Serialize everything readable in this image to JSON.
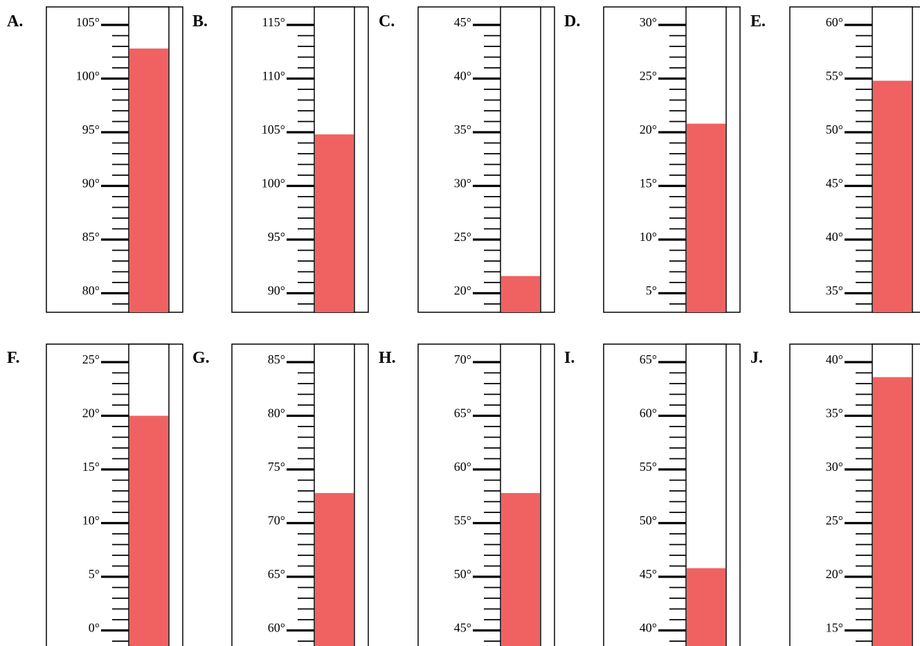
{
  "colors": {
    "fill": "#F06262",
    "ink": "#000000",
    "paper": "#FFFFFF"
  },
  "thermometers": [
    {
      "letter": "A.",
      "labels": [
        "105°",
        "100°",
        "95°",
        "90°",
        "85°",
        "80°"
      ],
      "top_value": 105,
      "reading": 102.8
    },
    {
      "letter": "B.",
      "labels": [
        "115°",
        "110°",
        "105°",
        "100°",
        "95°",
        "90°"
      ],
      "top_value": 115,
      "reading": 104.8
    },
    {
      "letter": "C.",
      "labels": [
        "45°",
        "40°",
        "35°",
        "30°",
        "25°",
        "20°"
      ],
      "top_value": 45,
      "reading": 21.6
    },
    {
      "letter": "D.",
      "labels": [
        "30°",
        "25°",
        "20°",
        "15°",
        "10°",
        "5°"
      ],
      "top_value": 30,
      "reading": 20.8
    },
    {
      "letter": "E.",
      "labels": [
        "60°",
        "55°",
        "50°",
        "45°",
        "40°",
        "35°"
      ],
      "top_value": 60,
      "reading": 54.8
    },
    {
      "letter": "F.",
      "labels": [
        "25°",
        "20°",
        "15°",
        "10°",
        "5°",
        "0°"
      ],
      "top_value": 25,
      "reading": 20
    },
    {
      "letter": "G.",
      "labels": [
        "85°",
        "80°",
        "75°",
        "70°",
        "65°",
        "60°"
      ],
      "top_value": 85,
      "reading": 72.8
    },
    {
      "letter": "H.",
      "labels": [
        "70°",
        "65°",
        "60°",
        "55°",
        "50°",
        "45°"
      ],
      "top_value": 70,
      "reading": 57.8
    },
    {
      "letter": "I.",
      "labels": [
        "65°",
        "60°",
        "55°",
        "50°",
        "45°",
        "40°"
      ],
      "top_value": 65,
      "reading": 45.8
    },
    {
      "letter": "J.",
      "labels": [
        "40°",
        "35°",
        "30°",
        "25°",
        "20°",
        "15°"
      ],
      "top_value": 40,
      "reading": 38.6
    }
  ]
}
